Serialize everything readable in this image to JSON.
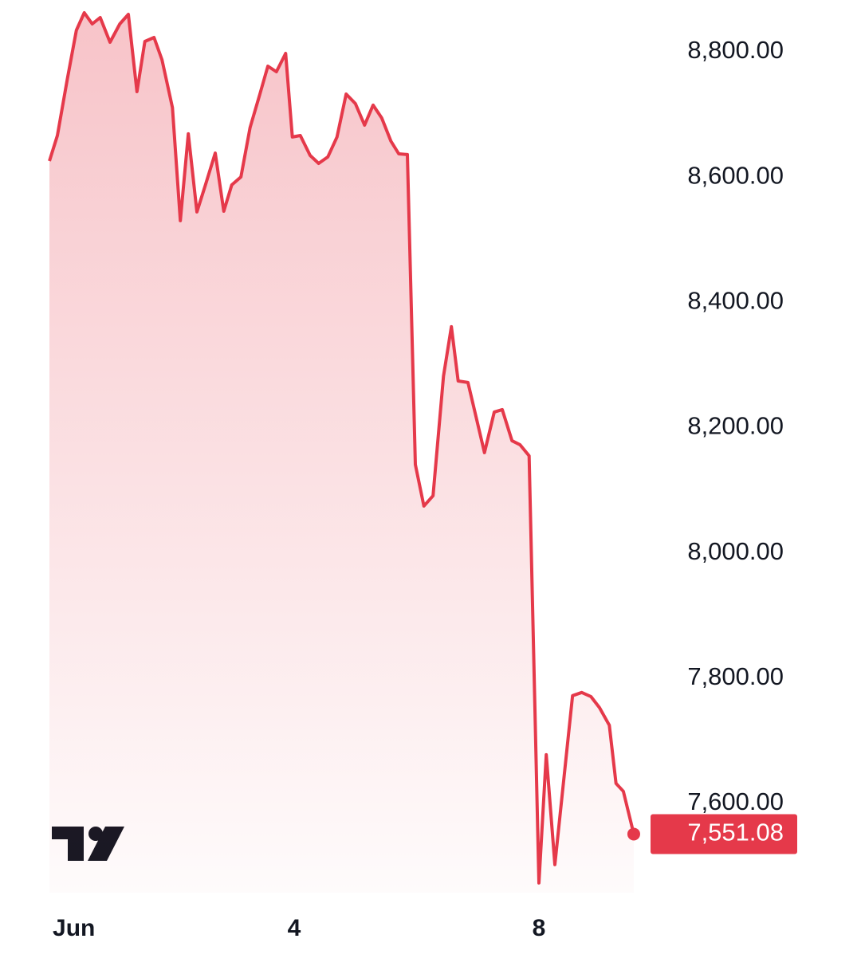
{
  "chart_data": {
    "type": "area",
    "x": [
      0,
      0.13,
      0.29,
      0.44,
      0.57,
      0.7,
      0.83,
      0.99,
      1.15,
      1.29,
      1.43,
      1.56,
      1.71,
      1.84,
      2.01,
      2.14,
      2.27,
      2.41,
      2.55,
      2.71,
      2.85,
      2.98,
      3.13,
      3.28,
      3.44,
      3.57,
      3.71,
      3.86,
      3.97,
      4.1,
      4.26,
      4.4,
      4.55,
      4.7,
      4.85,
      5.0,
      5.15,
      5.29,
      5.43,
      5.58,
      5.71,
      5.85,
      5.98,
      6.12,
      6.27,
      6.44,
      6.57,
      6.68,
      6.84,
      7.11,
      7.27,
      7.4,
      7.56,
      7.69,
      7.84,
      8.0,
      8.12,
      8.26,
      8.55,
      8.7,
      8.85,
      8.99,
      9.15,
      9.26,
      9.38,
      9.55
    ],
    "values": [
      8625.7,
      8666.4,
      8755.5,
      8834.4,
      8862.3,
      8844.5,
      8854.7,
      8815.3,
      8844.5,
      8859.8,
      8736.4,
      8816.5,
      8822.9,
      8787.3,
      8710.9,
      8530.3,
      8669.0,
      8544.3,
      8587.5,
      8638.4,
      8545.5,
      8587.5,
      8600.2,
      8679.1,
      8732.6,
      8777.1,
      8768.2,
      8797.5,
      8663.9,
      8666.4,
      8634.6,
      8621.9,
      8632.1,
      8663.9,
      8732.6,
      8717.3,
      8682.9,
      8714.8,
      8694.4,
      8657.5,
      8637.1,
      8635.9,
      8140.9,
      8074.8,
      8091.3,
      8282.2,
      8361.1,
      8274.5,
      8272.0,
      8160.0,
      8224.9,
      8228.7,
      8179.1,
      8172.8,
      8154.9,
      7473.0,
      7677.8,
      7502.3,
      7772.0,
      7777.1,
      7770.7,
      7752.9,
      7724.9,
      7632.0,
      7619.3,
      7551.08
    ],
    "value_labels": [
      null,
      null,
      null,
      null,
      null,
      null,
      null,
      null,
      null,
      null,
      null,
      null,
      null,
      null,
      null,
      null,
      null,
      null,
      null,
      null,
      null,
      null,
      null,
      null,
      null,
      null,
      null,
      null,
      null,
      null,
      null,
      null,
      null,
      null,
      null,
      null,
      null,
      null,
      null,
      null,
      null,
      null,
      null,
      null,
      null,
      null,
      null,
      null,
      null,
      null,
      null,
      null,
      null,
      null,
      null,
      null,
      null,
      null,
      null,
      null,
      null,
      null,
      null,
      null,
      null,
      "7,551.08"
    ],
    "color": "#e5394a",
    "xlim": [
      0,
      10
    ],
    "xticks": [
      {
        "value": 0.4,
        "label": "Jun"
      },
      4,
      8
    ],
    "ylim": [
      7457.5,
      8882.7
    ],
    "yticks": [
      {
        "value": 7600,
        "label": "7,600.00"
      },
      {
        "value": 7800,
        "label": "7,800.00"
      },
      {
        "value": 8000,
        "label": "8,000.00"
      },
      {
        "value": 8200,
        "label": "8,200.00"
      },
      {
        "value": 8400,
        "label": "8,400.00"
      },
      {
        "value": 8600,
        "label": "8,600.00"
      },
      {
        "value": 8800,
        "label": "8,800.00"
      }
    ]
  }
}
